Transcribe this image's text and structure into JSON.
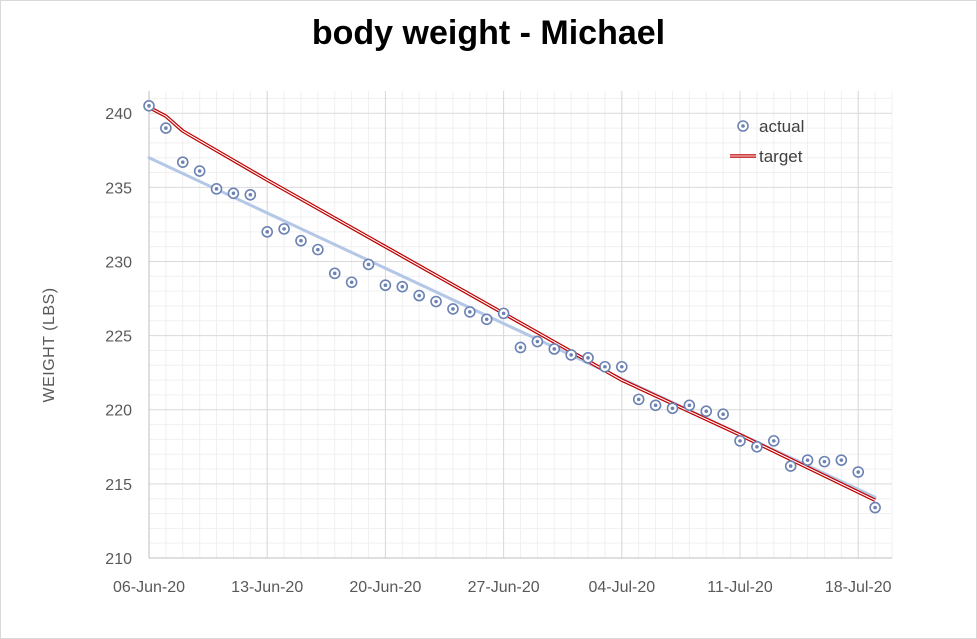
{
  "chart_data": {
    "type": "scatter",
    "title": "body weight - Michael",
    "xlabel": "",
    "ylabel": "WEIGHT (LBS)",
    "x_ticks": [
      "06-Jun-20",
      "13-Jun-20",
      "20-Jun-20",
      "27-Jun-20",
      "04-Jul-20",
      "11-Jul-20",
      "18-Jul-20"
    ],
    "y_ticks": [
      210,
      215,
      220,
      225,
      230,
      235,
      240
    ],
    "ylim": [
      210,
      241.5
    ],
    "xlim": [
      "2020-06-06",
      "2020-07-20"
    ],
    "grid": true,
    "legend": {
      "position": "top-right",
      "entries": [
        "actual",
        "target"
      ]
    },
    "series": [
      {
        "name": "actual",
        "style": "marker",
        "color": "#6b82b3",
        "points": [
          [
            "2020-06-06",
            240.5
          ],
          [
            "2020-06-07",
            239.0
          ],
          [
            "2020-06-08",
            236.7
          ],
          [
            "2020-06-09",
            236.1
          ],
          [
            "2020-06-10",
            234.9
          ],
          [
            "2020-06-11",
            234.6
          ],
          [
            "2020-06-12",
            234.5
          ],
          [
            "2020-06-13",
            232.0
          ],
          [
            "2020-06-14",
            232.2
          ],
          [
            "2020-06-15",
            231.4
          ],
          [
            "2020-06-16",
            230.8
          ],
          [
            "2020-06-17",
            229.2
          ],
          [
            "2020-06-18",
            228.6
          ],
          [
            "2020-06-19",
            229.8
          ],
          [
            "2020-06-20",
            228.4
          ],
          [
            "2020-06-21",
            228.3
          ],
          [
            "2020-06-22",
            227.7
          ],
          [
            "2020-06-23",
            227.3
          ],
          [
            "2020-06-24",
            226.8
          ],
          [
            "2020-06-25",
            226.6
          ],
          [
            "2020-06-26",
            226.1
          ],
          [
            "2020-06-27",
            226.5
          ],
          [
            "2020-06-28",
            224.2
          ],
          [
            "2020-06-29",
            224.6
          ],
          [
            "2020-06-30",
            224.1
          ],
          [
            "2020-07-01",
            223.7
          ],
          [
            "2020-07-02",
            223.5
          ],
          [
            "2020-07-03",
            222.9
          ],
          [
            "2020-07-04",
            222.9
          ],
          [
            "2020-07-05",
            220.7
          ],
          [
            "2020-07-06",
            220.3
          ],
          [
            "2020-07-07",
            220.1
          ],
          [
            "2020-07-08",
            220.3
          ],
          [
            "2020-07-09",
            219.9
          ],
          [
            "2020-07-10",
            219.7
          ],
          [
            "2020-07-11",
            217.9
          ],
          [
            "2020-07-12",
            217.5
          ],
          [
            "2020-07-13",
            217.9
          ],
          [
            "2020-07-14",
            216.2
          ],
          [
            "2020-07-15",
            216.6
          ],
          [
            "2020-07-16",
            216.5
          ],
          [
            "2020-07-17",
            216.6
          ],
          [
            "2020-07-18",
            215.8
          ],
          [
            "2020-07-19",
            213.4
          ]
        ]
      },
      {
        "name": "target",
        "style": "double-line",
        "color": "#c00000",
        "points": [
          [
            "2020-06-06",
            240.4
          ],
          [
            "2020-06-07",
            239.8
          ],
          [
            "2020-06-08",
            238.8
          ],
          [
            "2020-06-13",
            235.5
          ],
          [
            "2020-06-20",
            231.0
          ],
          [
            "2020-06-27",
            226.5
          ],
          [
            "2020-07-04",
            222.0
          ],
          [
            "2020-07-11",
            218.3
          ],
          [
            "2020-07-19",
            213.9
          ]
        ]
      },
      {
        "style": "trendline",
        "color": "#b4c7e7",
        "points": [
          [
            "2020-06-06",
            237.0
          ],
          [
            "2020-07-19",
            214.1
          ]
        ]
      }
    ]
  }
}
